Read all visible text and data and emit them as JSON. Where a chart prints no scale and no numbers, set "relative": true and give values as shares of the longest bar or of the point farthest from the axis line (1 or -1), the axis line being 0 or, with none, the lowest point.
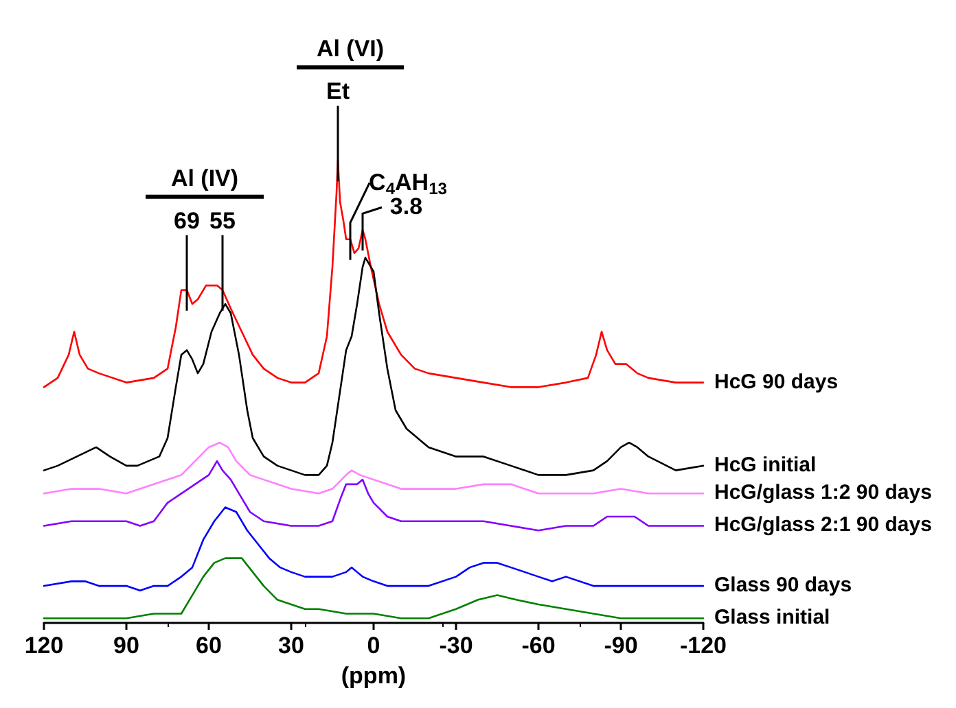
{
  "chart_data": {
    "type": "line",
    "relative": true,
    "xlabel": "(ppm)",
    "xlim": [
      120,
      -120
    ],
    "xticks": [
      120,
      90,
      60,
      30,
      0,
      -30,
      -60,
      -90,
      -120
    ],
    "grid": false,
    "legend": false,
    "marker": "none",
    "line_style": "solid",
    "annotations": [
      "Al (IV)",
      {
        "text": "69",
        "x": 68,
        "y": 0.72
      },
      {
        "text": "55",
        "x": 55,
        "y": 0.72
      },
      "Al (VI)",
      {
        "text": "Et",
        "x": 13,
        "y": 1.0
      },
      {
        "text": "C$_{4}$AH$_{13}$",
        "x": 8.5,
        "y": 0.83
      },
      {
        "text": "3.8",
        "x": 4,
        "y": 0.85
      }
    ],
    "series": [
      {
        "name": "HcG 90 days",
        "color": "#ff0000",
        "x": [
          120,
          115,
          111,
          109,
          107,
          104,
          100,
          90,
          80,
          75,
          72,
          70,
          68,
          66,
          64,
          61,
          57,
          55,
          52,
          48,
          44,
          40,
          35,
          30,
          25,
          20,
          17,
          15,
          13.5,
          13,
          12.2,
          11,
          10,
          8.5,
          7,
          5.5,
          4,
          3,
          1,
          -2,
          -5,
          -10,
          -15,
          -20,
          -30,
          -40,
          -50,
          -60,
          -70,
          -78,
          -81,
          -83,
          -85,
          -88,
          -92,
          -96,
          -100,
          -110,
          -120
        ],
        "values": [
          0.51,
          0.53,
          0.58,
          0.63,
          0.58,
          0.55,
          0.54,
          0.52,
          0.53,
          0.55,
          0.64,
          0.72,
          0.72,
          0.69,
          0.7,
          0.73,
          0.73,
          0.72,
          0.68,
          0.63,
          0.58,
          0.55,
          0.53,
          0.52,
          0.52,
          0.54,
          0.62,
          0.77,
          0.93,
          1.0,
          0.91,
          0.87,
          0.83,
          0.83,
          0.8,
          0.81,
          0.85,
          0.83,
          0.77,
          0.69,
          0.63,
          0.58,
          0.55,
          0.54,
          0.53,
          0.52,
          0.51,
          0.51,
          0.52,
          0.53,
          0.58,
          0.63,
          0.59,
          0.56,
          0.56,
          0.54,
          0.53,
          0.52,
          0.52
        ]
      },
      {
        "name": "HcG initial",
        "color": "#000000",
        "x": [
          120,
          115,
          108,
          101,
          96,
          90,
          86,
          82,
          78,
          75,
          72,
          70,
          68,
          66,
          64,
          62,
          59,
          56,
          54,
          52,
          49,
          46,
          44,
          40,
          35,
          30,
          25,
          20,
          17,
          15,
          12,
          10,
          8,
          6,
          4,
          3,
          2,
          0,
          -2,
          -5,
          -8,
          -12,
          -20,
          -30,
          -40,
          -50,
          -60,
          -70,
          -80,
          -85,
          -90,
          -93,
          -96,
          -100,
          -110,
          -120
        ],
        "values": [
          0.33,
          0.34,
          0.36,
          0.38,
          0.36,
          0.34,
          0.34,
          0.35,
          0.36,
          0.4,
          0.51,
          0.58,
          0.59,
          0.57,
          0.54,
          0.56,
          0.63,
          0.67,
          0.69,
          0.67,
          0.58,
          0.46,
          0.4,
          0.36,
          0.34,
          0.33,
          0.32,
          0.32,
          0.34,
          0.39,
          0.51,
          0.59,
          0.62,
          0.69,
          0.77,
          0.79,
          0.78,
          0.76,
          0.67,
          0.55,
          0.46,
          0.42,
          0.38,
          0.36,
          0.36,
          0.34,
          0.32,
          0.32,
          0.33,
          0.35,
          0.38,
          0.39,
          0.38,
          0.36,
          0.33,
          0.34
        ]
      },
      {
        "name": "HcG/glass 1:2 90 days",
        "color": "#ff80ff",
        "x": [
          120,
          110,
          100,
          90,
          80,
          70,
          65,
          60,
          56,
          53,
          50,
          45,
          40,
          35,
          30,
          20,
          15,
          10,
          8,
          5,
          0,
          -5,
          -10,
          -20,
          -30,
          -40,
          -50,
          -60,
          -70,
          -80,
          -90,
          -100,
          -110,
          -120
        ],
        "values": [
          0.28,
          0.29,
          0.29,
          0.28,
          0.3,
          0.32,
          0.35,
          0.38,
          0.39,
          0.38,
          0.35,
          0.32,
          0.31,
          0.3,
          0.29,
          0.28,
          0.29,
          0.32,
          0.33,
          0.32,
          0.31,
          0.3,
          0.29,
          0.29,
          0.29,
          0.3,
          0.3,
          0.28,
          0.28,
          0.28,
          0.29,
          0.28,
          0.28,
          0.28
        ]
      },
      {
        "name": "HcG/glass 2:1 90 days",
        "color": "#8000ff",
        "x": [
          120,
          110,
          100,
          90,
          85,
          80,
          75,
          70,
          65,
          60,
          57,
          55,
          52,
          48,
          45,
          40,
          30,
          20,
          15,
          12,
          10,
          8,
          6,
          4,
          2,
          0,
          -5,
          -10,
          -20,
          -30,
          -40,
          -50,
          -60,
          -70,
          -80,
          -85,
          -90,
          -95,
          -100,
          -110,
          -120
        ],
        "values": [
          0.21,
          0.22,
          0.22,
          0.22,
          0.21,
          0.22,
          0.26,
          0.28,
          0.3,
          0.32,
          0.35,
          0.33,
          0.31,
          0.27,
          0.24,
          0.22,
          0.21,
          0.21,
          0.22,
          0.27,
          0.3,
          0.3,
          0.3,
          0.31,
          0.28,
          0.26,
          0.23,
          0.22,
          0.22,
          0.22,
          0.22,
          0.21,
          0.2,
          0.21,
          0.21,
          0.23,
          0.23,
          0.23,
          0.21,
          0.21,
          0.21
        ]
      },
      {
        "name": "Glass 90 days",
        "color": "#0000ff",
        "x": [
          120,
          110,
          105,
          100,
          90,
          85,
          80,
          75,
          70,
          66,
          62,
          58,
          54,
          50,
          46,
          42,
          38,
          34,
          30,
          25,
          20,
          15,
          10,
          8,
          6,
          4,
          0,
          -5,
          -10,
          -20,
          -30,
          -35,
          -40,
          -45,
          -50,
          -55,
          -60,
          -65,
          -70,
          -80,
          -90,
          -100,
          -110,
          -120
        ],
        "values": [
          0.08,
          0.09,
          0.09,
          0.08,
          0.08,
          0.07,
          0.08,
          0.08,
          0.1,
          0.12,
          0.18,
          0.22,
          0.25,
          0.24,
          0.2,
          0.17,
          0.14,
          0.12,
          0.11,
          0.1,
          0.1,
          0.1,
          0.11,
          0.12,
          0.11,
          0.1,
          0.09,
          0.08,
          0.08,
          0.08,
          0.1,
          0.12,
          0.13,
          0.13,
          0.12,
          0.11,
          0.1,
          0.09,
          0.1,
          0.08,
          0.08,
          0.08,
          0.08,
          0.08
        ]
      },
      {
        "name": "Glass initial",
        "color": "#008000",
        "x": [
          120,
          110,
          100,
          90,
          80,
          75,
          70,
          66,
          62,
          58,
          54,
          51,
          48,
          44,
          40,
          35,
          30,
          25,
          20,
          10,
          5,
          0,
          -10,
          -20,
          -30,
          -38,
          -45,
          -52,
          -60,
          -70,
          -80,
          -90,
          -100,
          -110,
          -120
        ],
        "values": [
          0.01,
          0.01,
          0.01,
          0.01,
          0.02,
          0.02,
          0.02,
          0.06,
          0.1,
          0.13,
          0.14,
          0.14,
          0.14,
          0.11,
          0.08,
          0.05,
          0.04,
          0.03,
          0.03,
          0.02,
          0.02,
          0.02,
          0.01,
          0.01,
          0.03,
          0.05,
          0.06,
          0.05,
          0.04,
          0.03,
          0.02,
          0.01,
          0.01,
          0.01,
          0.01
        ]
      }
    ]
  }
}
